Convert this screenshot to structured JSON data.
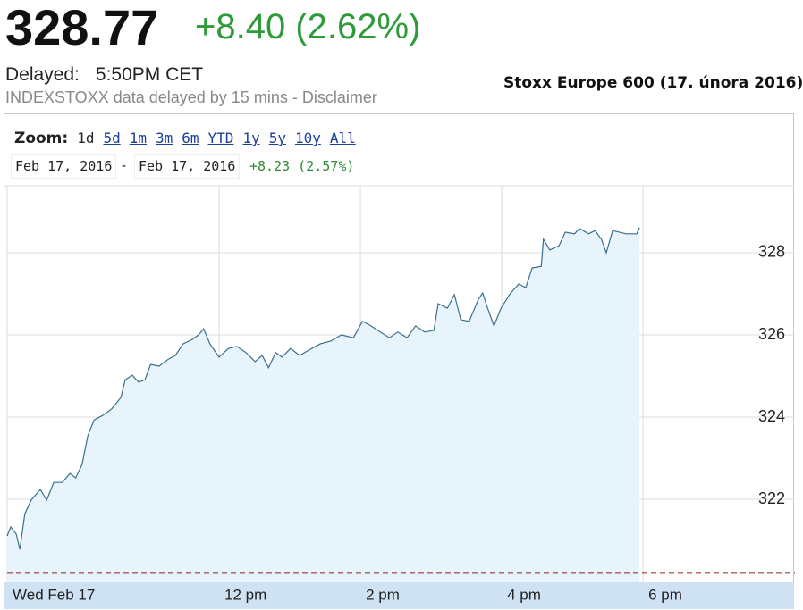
{
  "header": {
    "price": "328.77",
    "change": "+8.40 (2.62%)",
    "delayed_label": "Delayed:",
    "delayed_time": "5:50PM CET",
    "disclaimer": "INDEXSTOXX data delayed by 15 mins - Disclaimer",
    "caption": "Stoxx Europe 600 (17. února 2016)"
  },
  "toolbar": {
    "zoom_label": "Zoom:",
    "zoom_options": [
      "1d",
      "5d",
      "1m",
      "3m",
      "6m",
      "YTD",
      "1y",
      "5y",
      "10y",
      "All"
    ],
    "date_from": "Feb 17, 2016",
    "date_separator": "-",
    "date_to": "Feb 17, 2016",
    "range_change": "+8.23 (2.57%)"
  },
  "chart_data": {
    "type": "line",
    "x": [
      9.0,
      9.05,
      9.13,
      9.18,
      9.25,
      9.34,
      9.47,
      9.56,
      9.66,
      9.78,
      9.89,
      9.97,
      10.06,
      10.14,
      10.23,
      10.35,
      10.48,
      10.61,
      10.67,
      10.77,
      10.86,
      10.95,
      11.03,
      11.15,
      11.28,
      11.38,
      11.49,
      11.62,
      11.71,
      11.78,
      11.87,
      12.0,
      12.13,
      12.25,
      12.38,
      12.51,
      12.61,
      12.7,
      12.8,
      12.89,
      13.01,
      13.14,
      13.27,
      13.43,
      13.58,
      13.73,
      13.9,
      14.03,
      14.15,
      14.28,
      14.41,
      14.53,
      14.66,
      14.78,
      14.91,
      15.04,
      15.1,
      15.23,
      15.33,
      15.42,
      15.54,
      15.67,
      15.73,
      15.8,
      15.89,
      15.99,
      16.11,
      16.24,
      16.34,
      16.43,
      16.56,
      16.59,
      16.68,
      16.81,
      16.9,
      17.03,
      17.1,
      17.23,
      17.32,
      17.41,
      17.48,
      17.57,
      17.76,
      17.91,
      17.95
    ],
    "values": [
      321.11,
      321.33,
      321.15,
      320.78,
      321.65,
      321.98,
      322.24,
      321.98,
      322.41,
      322.41,
      322.63,
      322.52,
      322.85,
      323.54,
      323.93,
      324.04,
      324.2,
      324.48,
      324.91,
      325.02,
      324.85,
      324.91,
      325.28,
      325.24,
      325.41,
      325.5,
      325.78,
      325.89,
      326.0,
      326.15,
      325.78,
      325.46,
      325.67,
      325.72,
      325.57,
      325.35,
      325.5,
      325.2,
      325.57,
      325.46,
      325.67,
      325.5,
      325.63,
      325.78,
      325.85,
      326.0,
      325.93,
      326.33,
      326.22,
      326.07,
      325.93,
      326.07,
      325.93,
      326.22,
      326.07,
      326.11,
      326.76,
      326.65,
      326.98,
      326.37,
      326.33,
      326.87,
      327.02,
      326.65,
      326.22,
      326.65,
      326.98,
      327.24,
      327.15,
      327.63,
      327.67,
      328.33,
      328.07,
      328.17,
      328.5,
      328.46,
      328.59,
      328.46,
      328.54,
      328.33,
      328.0,
      328.54,
      328.46,
      328.46,
      328.61
    ],
    "color": "#3a6f8c",
    "fill_color": "#e8f4fc",
    "xlim": [
      9,
      20.15
    ],
    "xticks": [
      {
        "value": 9,
        "label": "Wed Feb 17"
      },
      {
        "value": 12,
        "label": "12 pm"
      },
      {
        "value": 14,
        "label": "2 pm"
      },
      {
        "value": 16,
        "label": "4 pm"
      },
      {
        "value": 18,
        "label": "6 pm"
      }
    ],
    "ylim": [
      319.98,
      329.63
    ],
    "yticks": [
      322,
      324,
      326,
      328
    ],
    "grid": true,
    "reference_line": 320.2,
    "reference_color": "#8b2020"
  }
}
